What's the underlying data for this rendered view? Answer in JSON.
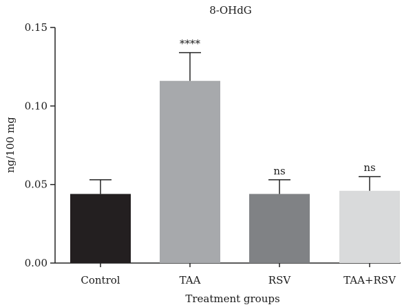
{
  "chart_data": {
    "type": "bar",
    "title": "8-OHdG",
    "xlabel": "Treatment groups",
    "ylabel": "ng/100 mg",
    "ylim": [
      0,
      0.15
    ],
    "yticks": [
      "0.00",
      "0.05",
      "0.10",
      "0.15"
    ],
    "categories": [
      "Control",
      "TAA",
      "RSV",
      "TAA+RSV"
    ],
    "values": [
      0.044,
      0.116,
      0.044,
      0.046
    ],
    "error": [
      0.009,
      0.018,
      0.009,
      0.009
    ],
    "significance": [
      "",
      "****",
      "ns",
      "ns"
    ],
    "colors": [
      "#231f20",
      "#a7a9ac",
      "#808285",
      "#d9dadb"
    ],
    "grid": false,
    "legend": "none"
  }
}
